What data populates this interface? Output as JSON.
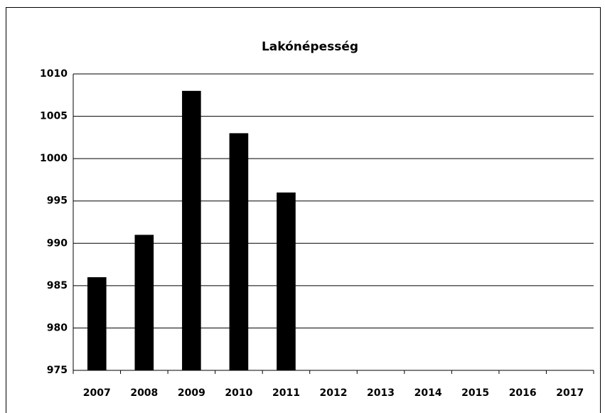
{
  "chart_data": {
    "type": "bar",
    "title": "Lakónépesség",
    "categories": [
      "2007",
      "2008",
      "2009",
      "2010",
      "2011",
      "2012",
      "2013",
      "2014",
      "2015",
      "2016",
      "2017"
    ],
    "values": [
      986,
      991,
      1008,
      1003,
      996,
      null,
      null,
      null,
      null,
      null,
      null
    ],
    "color": "#000000",
    "ylim": [
      975,
      1010
    ],
    "yticks": [
      975,
      980,
      985,
      990,
      995,
      1000,
      1005,
      1010
    ],
    "grid": true
  }
}
